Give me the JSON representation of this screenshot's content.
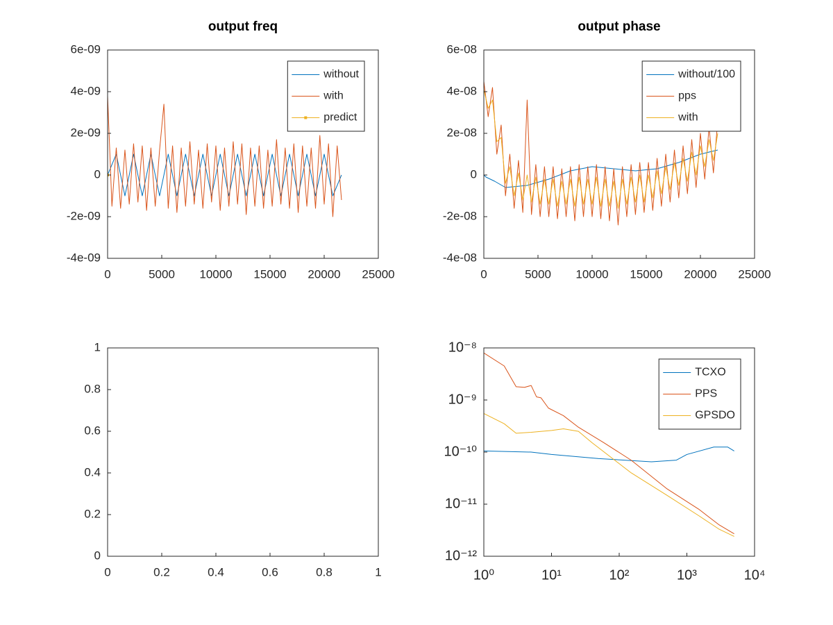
{
  "chart_data": [
    {
      "type": "line",
      "title": "output freq",
      "xlim": [
        0,
        25000
      ],
      "xticks": [
        0,
        5000,
        10000,
        15000,
        20000,
        25000
      ],
      "ylim": [
        -4e-09,
        6e-09
      ],
      "yticks": [
        {
          "value": -4e-09,
          "label": "-4e-09"
        },
        {
          "value": -2e-09,
          "label": "-2e-09"
        },
        {
          "value": 0,
          "label": "0"
        },
        {
          "value": 2e-09,
          "label": "2e-09"
        },
        {
          "value": 4e-09,
          "label": "4e-09"
        },
        {
          "value": 6e-09,
          "label": "6e-09"
        }
      ],
      "legend": "northeast",
      "series": [
        {
          "name": "without",
          "color": "#0072bd",
          "x": [
            0,
            800,
            1600,
            2400,
            3200,
            4000,
            4800,
            5600,
            6400,
            7200,
            8000,
            8800,
            9600,
            10400,
            11200,
            12000,
            12800,
            13600,
            14400,
            15200,
            16000,
            16800,
            17600,
            18400,
            19200,
            20000,
            20800,
            21600
          ],
          "values": [
            0,
            1e-09,
            -1e-09,
            1e-09,
            -1e-09,
            1e-09,
            -1e-09,
            1e-09,
            -1e-09,
            1e-09,
            -1e-09,
            1e-09,
            -1e-09,
            1e-09,
            -1e-09,
            1e-09,
            -1e-09,
            1e-09,
            -1e-09,
            1e-09,
            -1e-09,
            1e-09,
            -1e-09,
            1e-09,
            -1e-09,
            1e-09,
            -1e-09,
            0
          ]
        },
        {
          "name": "with",
          "color": "#d95319",
          "x": [
            0,
            400,
            800,
            1200,
            1600,
            2000,
            2400,
            2800,
            3200,
            3600,
            4000,
            4400,
            4800,
            5200,
            5600,
            6000,
            6400,
            6800,
            7200,
            7600,
            8000,
            8400,
            8800,
            9200,
            9600,
            10000,
            10400,
            10800,
            11200,
            11600,
            12000,
            12400,
            12800,
            13200,
            13600,
            14000,
            14400,
            14800,
            15200,
            15600,
            16000,
            16400,
            16800,
            17200,
            17600,
            18000,
            18400,
            18800,
            19200,
            19600,
            20000,
            20400,
            20800,
            21200,
            21600
          ],
          "values": [
            3.8e-09,
            -1.5e-09,
            1.3e-09,
            -1.6e-09,
            1.2e-09,
            -1.4e-09,
            1.5e-09,
            -1.3e-09,
            1.4e-09,
            -1.7e-09,
            1.3e-09,
            -1.5e-09,
            1.2e-09,
            3.4e-09,
            -1.6e-09,
            1.4e-09,
            -1.8e-09,
            1.3e-09,
            -1.5e-09,
            1.6e-09,
            -1.4e-09,
            1.2e-09,
            -1.6e-09,
            1.5e-09,
            -1.3e-09,
            1.4e-09,
            -1.7e-09,
            1.3e-09,
            -1.5e-09,
            1.6e-09,
            -1.4e-09,
            1.5e-09,
            -1.9e-09,
            1.3e-09,
            -1.5e-09,
            1.4e-09,
            -1.6e-09,
            1.2e-09,
            -1.5e-09,
            1.7e-09,
            -1.4e-09,
            1.3e-09,
            -1.6e-09,
            1.5e-09,
            -1.8e-09,
            1.4e-09,
            -1.5e-09,
            1.3e-09,
            -1.6e-09,
            1.9e-09,
            -1.4e-09,
            1.5e-09,
            -2e-09,
            1.4e-09,
            -1.2e-09
          ]
        },
        {
          "name": "predict",
          "color": "#edb120",
          "marker": "square",
          "x": [
            0
          ],
          "values": [
            0
          ]
        }
      ]
    },
    {
      "type": "line",
      "title": "output phase",
      "xlim": [
        0,
        25000
      ],
      "xticks": [
        0,
        5000,
        10000,
        15000,
        20000,
        25000
      ],
      "ylim": [
        -4e-08,
        6e-08
      ],
      "yticks": [
        {
          "value": -4e-08,
          "label": "-4e-08"
        },
        {
          "value": -2e-08,
          "label": "-2e-08"
        },
        {
          "value": 0,
          "label": "0"
        },
        {
          "value": 2e-08,
          "label": "2e-08"
        },
        {
          "value": 4e-08,
          "label": "4e-08"
        },
        {
          "value": 6e-08,
          "label": "6e-08"
        }
      ],
      "legend": "northeast",
      "series": [
        {
          "name": "without/100",
          "color": "#0072bd",
          "x": [
            0,
            200,
            1000,
            2000,
            4000,
            6000,
            8000,
            10000,
            12000,
            14000,
            16000,
            18000,
            20000,
            21600
          ],
          "values": [
            0,
            -1e-09,
            -3e-09,
            -6e-09,
            -5e-09,
            -2e-09,
            2e-09,
            4e-09,
            3e-09,
            2e-09,
            3e-09,
            6e-09,
            1e-08,
            1.2e-08
          ]
        },
        {
          "name": "pps",
          "color": "#d95319",
          "x": [
            0,
            400,
            800,
            1200,
            1600,
            2000,
            2400,
            2800,
            3200,
            3600,
            4000,
            4400,
            4800,
            5200,
            5600,
            6000,
            6400,
            6800,
            7200,
            7600,
            8000,
            8400,
            8800,
            9200,
            9600,
            10000,
            10400,
            10800,
            11200,
            11600,
            12000,
            12400,
            12800,
            13200,
            13600,
            14000,
            14400,
            14800,
            15200,
            15600,
            16000,
            16400,
            16800,
            17200,
            17600,
            18000,
            18400,
            18800,
            19200,
            19600,
            20000,
            20400,
            20800,
            21200,
            21600
          ],
          "values": [
            4.5e-08,
            2.8e-08,
            4.2e-08,
            1e-08,
            2.4e-08,
            -1e-08,
            1e-08,
            -1.6e-08,
            7e-09,
            -1.8e-08,
            3.6e-08,
            -1.9e-08,
            5e-09,
            -2e-08,
            4e-09,
            -2e-08,
            4e-09,
            -2.1e-08,
            3e-09,
            -2e-08,
            4e-09,
            -2.2e-08,
            5e-09,
            -2e-08,
            4e-09,
            -2e-08,
            5e-09,
            -2.1e-08,
            4e-09,
            -2.2e-08,
            3e-09,
            -2.4e-08,
            4e-09,
            -2e-08,
            5e-09,
            -1.9e-08,
            6e-09,
            -1.8e-08,
            6e-09,
            -1.7e-08,
            8e-09,
            -1.5e-08,
            1e-08,
            -1.3e-08,
            1.2e-08,
            -1.1e-08,
            1.4e-08,
            -9e-09,
            1.7e-08,
            -6e-09,
            2e-08,
            -2e-09,
            2.3e-08,
            1e-09,
            2.6e-08
          ]
        },
        {
          "name": "with",
          "color": "#edb120",
          "x": [
            0,
            400,
            800,
            1200,
            1600,
            2000,
            2400,
            2800,
            3200,
            3600,
            4000,
            4400,
            4800,
            5200,
            5600,
            6000,
            6400,
            6800,
            7200,
            7600,
            8000,
            8400,
            8800,
            9200,
            9600,
            10000,
            10400,
            10800,
            11200,
            11600,
            12000,
            12400,
            12800,
            13200,
            13600,
            14000,
            14400,
            14800,
            15200,
            15600,
            16000,
            16400,
            16800,
            17200,
            17600,
            18000,
            18400,
            18800,
            19200,
            19600,
            20000,
            20400,
            20800,
            21200,
            21600
          ],
          "values": [
            4.1e-08,
            3.2e-08,
            3.6e-08,
            1.6e-08,
            1.8e-08,
            -4e-09,
            4e-09,
            -1e-08,
            1e-09,
            -1.2e-08,
            0.0,
            -1.3e-08,
            -1e-09,
            -1.4e-08,
            -2e-09,
            -1.4e-08,
            -2e-09,
            -1.5e-08,
            -3e-09,
            -1.4e-08,
            -2e-09,
            -1.5e-08,
            -1e-09,
            -1.4e-08,
            -2e-09,
            -1.4e-08,
            -1e-09,
            -1.5e-08,
            -2e-09,
            -1.5e-08,
            -3e-09,
            -1.6e-08,
            -2e-09,
            -1.4e-08,
            -1e-09,
            -1.3e-08,
            0.0,
            -1.3e-08,
            0.0,
            -1.1e-08,
            2e-09,
            -9e-09,
            4e-09,
            -7e-09,
            6e-09,
            -5e-09,
            8e-09,
            -3e-09,
            1.1e-08,
            0.0,
            1.4e-08,
            4e-09,
            1.7e-08,
            7e-09,
            2e-08
          ]
        }
      ]
    },
    {
      "type": "line",
      "xlim": [
        0,
        1
      ],
      "xticks": [
        0,
        0.2,
        0.4,
        0.6,
        0.8,
        1
      ],
      "ylim": [
        0,
        1
      ],
      "yticks": [
        0,
        0.2,
        0.4,
        0.6,
        0.8,
        1
      ],
      "series": []
    },
    {
      "type": "line",
      "xscale": "log",
      "yscale": "log",
      "xlim": [
        1,
        10000
      ],
      "xticks": [
        {
          "value": 1,
          "label": "10⁰"
        },
        {
          "value": 10,
          "label": "10¹"
        },
        {
          "value": 100,
          "label": "10²"
        },
        {
          "value": 1000,
          "label": "10³"
        },
        {
          "value": 10000,
          "label": "10⁴"
        }
      ],
      "ylim": [
        1e-12,
        1e-08
      ],
      "yticks": [
        {
          "value": 1e-12,
          "label": "10⁻¹²"
        },
        {
          "value": 1e-11,
          "label": "10⁻¹¹"
        },
        {
          "value": 1e-10,
          "label": "10⁻¹⁰"
        },
        {
          "value": 1e-09,
          "label": "10⁻⁹"
        },
        {
          "value": 1e-08,
          "label": "10⁻⁸"
        }
      ],
      "legend": "northeast",
      "series": [
        {
          "name": "TCXO",
          "color": "#0072bd",
          "x": [
            1,
            5,
            10,
            50,
            300,
            700,
            1000,
            2500,
            4000,
            5000
          ],
          "values": [
            1.05e-10,
            1e-10,
            9e-11,
            7.5e-11,
            6.5e-11,
            7e-11,
            9e-11,
            1.25e-10,
            1.25e-10,
            1.05e-10
          ]
        },
        {
          "name": "PPS",
          "color": "#d95319",
          "x": [
            1,
            2,
            3,
            4,
            5,
            6,
            7,
            9,
            15,
            25,
            60,
            150,
            500,
            1500,
            3000,
            5000
          ],
          "values": [
            8e-09,
            4.5e-09,
            1.8e-09,
            1.75e-09,
            1.9e-09,
            1.15e-09,
            1.1e-09,
            7e-10,
            5e-10,
            3e-10,
            1.5e-10,
            7e-11,
            2e-11,
            8e-12,
            4e-12,
            2.7e-12
          ]
        },
        {
          "name": "GPSDO",
          "color": "#edb120",
          "x": [
            1,
            2,
            3,
            5,
            10,
            15,
            25,
            40,
            100,
            150,
            500,
            1500,
            3000,
            5000
          ],
          "values": [
            5.5e-10,
            3.5e-10,
            2.3e-10,
            2.4e-10,
            2.6e-10,
            2.8e-10,
            2.5e-10,
            1.5e-10,
            6e-11,
            4e-11,
            1.5e-11,
            6e-12,
            3.3e-12,
            2.4e-12
          ]
        }
      ]
    }
  ]
}
